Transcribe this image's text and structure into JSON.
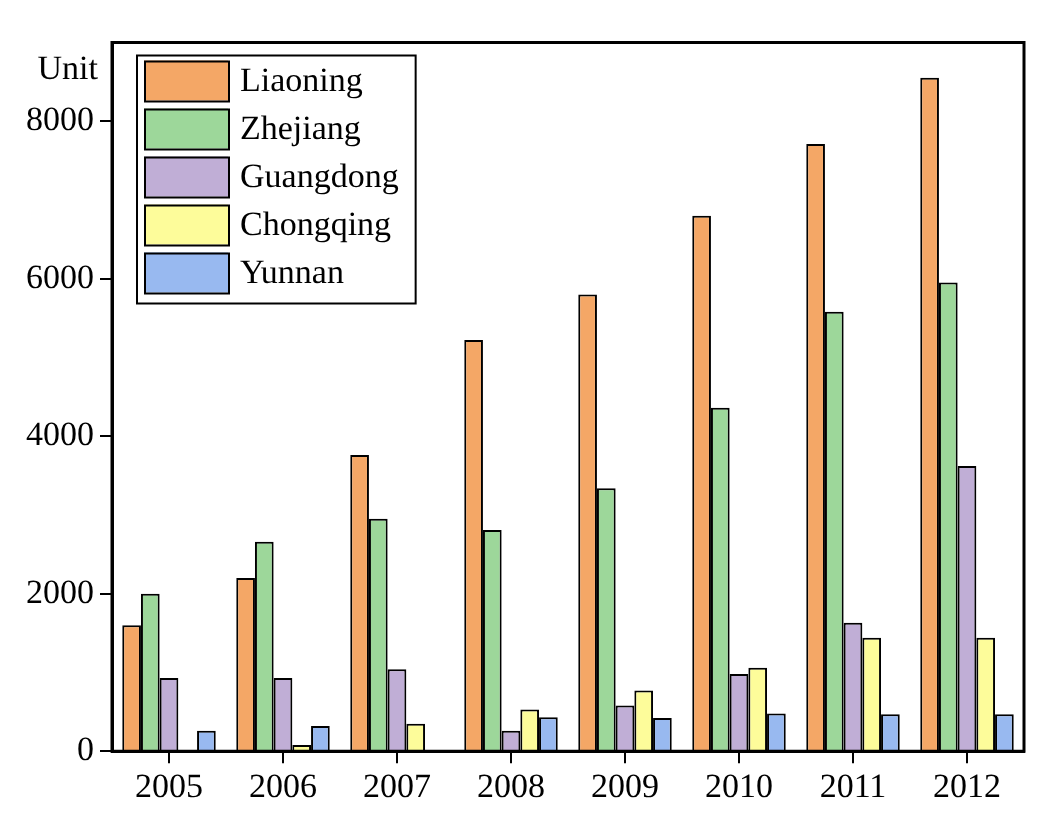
{
  "chart_data": {
    "type": "bar",
    "ylabel": "Unit",
    "categories": [
      "2005",
      "2006",
      "2007",
      "2008",
      "2009",
      "2010",
      "2011",
      "2012"
    ],
    "series": [
      {
        "name": "Liaoning",
        "color": "#f4a766",
        "values": [
          1600,
          2200,
          3760,
          5220,
          5800,
          6800,
          7710,
          8550
        ]
      },
      {
        "name": "Zhejiang",
        "color": "#9dd79a",
        "values": [
          2000,
          2660,
          2950,
          2810,
          3340,
          4360,
          5580,
          5950
        ]
      },
      {
        "name": "Guangdong",
        "color": "#c0aed6",
        "values": [
          930,
          930,
          1040,
          260,
          580,
          980,
          1630,
          3620
        ]
      },
      {
        "name": "Chongqing",
        "color": "#fdfc9a",
        "values": [
          0,
          80,
          350,
          530,
          770,
          1060,
          1440,
          1440
        ]
      },
      {
        "name": "Yunnan",
        "color": "#98b9f0",
        "values": [
          260,
          320,
          0,
          430,
          420,
          480,
          470,
          470
        ]
      }
    ],
    "ylim": [
      0,
      9000
    ],
    "yticks": [
      0,
      2000,
      4000,
      6000,
      8000
    ],
    "grid": false,
    "legend": "top left"
  }
}
